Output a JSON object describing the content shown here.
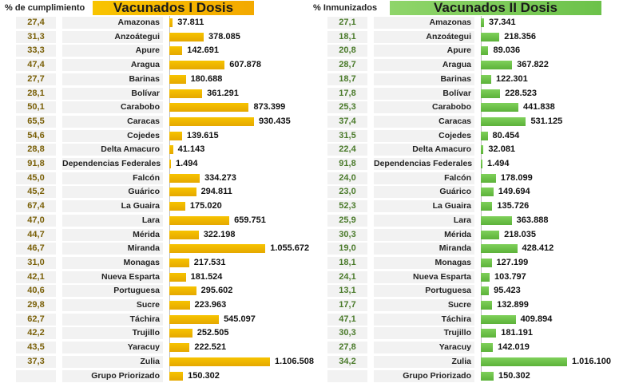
{
  "chart_data": [
    {
      "type": "bar",
      "orientation": "horizontal",
      "title": "Vacunados I Dosis",
      "pct_header": "% de cumplimiento",
      "colors": {
        "bar_top": "#f7c300",
        "bar_bottom": "#e5a800",
        "title_bg_left": "#f8c400",
        "title_bg_right": "#f3a900",
        "pct_text": "#7a6008"
      },
      "categories": [
        "Amazonas",
        "Anzoátegui",
        "Apure",
        "Aragua",
        "Barinas",
        "Bolívar",
        "Carabobo",
        "Caracas",
        "Cojedes",
        "Delta Amacuro",
        "Dependencias Federales",
        "Falcón",
        "Guárico",
        "La Guaira",
        "Lara",
        "Mérida",
        "Miranda",
        "Monagas",
        "Nueva Esparta",
        "Portuguesa",
        "Sucre",
        "Táchira",
        "Trujillo",
        "Yaracuy",
        "Zulia",
        "Grupo Priorizado"
      ],
      "values": [
        37811,
        378085,
        142691,
        607878,
        180688,
        361291,
        873399,
        930435,
        139615,
        41143,
        1494,
        334273,
        294811,
        175020,
        659751,
        322198,
        1055672,
        217531,
        181524,
        295602,
        223963,
        545097,
        252505,
        222521,
        1106508,
        150302
      ],
      "value_labels": [
        "37.811",
        "378.085",
        "142.691",
        "607.878",
        "180.688",
        "361.291",
        "873.399",
        "930.435",
        "139.615",
        "41.143",
        "1.494",
        "334.273",
        "294.811",
        "175.020",
        "659.751",
        "322.198",
        "1.055.672",
        "217.531",
        "181.524",
        "295.602",
        "223.963",
        "545.097",
        "252.505",
        "222.521",
        "1.106.508",
        "150.302"
      ],
      "percentages": [
        "27,4",
        "31,3",
        "33,3",
        "47,4",
        "27,7",
        "28,1",
        "50,1",
        "65,5",
        "54,6",
        "28,8",
        "91,8",
        "45,0",
        "45,2",
        "67,4",
        "47,0",
        "44,7",
        "46,7",
        "31,0",
        "42,1",
        "40,6",
        "29,8",
        "62,7",
        "42,2",
        "43,5",
        "37,3",
        ""
      ],
      "xlim": [
        0,
        1106508
      ]
    },
    {
      "type": "bar",
      "orientation": "horizontal",
      "title": "Vacunados II Dosis",
      "pct_header": "% Inmunizados",
      "colors": {
        "bar_top": "#7fd05a",
        "bar_bottom": "#5cb23a",
        "title_bg_left": "#8fd56a",
        "title_bg_right": "#6cc24a",
        "pct_text": "#4a7a2a"
      },
      "categories": [
        "Amazonas",
        "Anzoátegui",
        "Apure",
        "Aragua",
        "Barinas",
        "Bolívar",
        "Carabobo",
        "Caracas",
        "Cojedes",
        "Delta Amacuro",
        "Dependencias Federales",
        "Falcón",
        "Guárico",
        "La Guaira",
        "Lara",
        "Mérida",
        "Miranda",
        "Monagas",
        "Nueva Esparta",
        "Portuguesa",
        "Sucre",
        "Táchira",
        "Trujillo",
        "Yaracuy",
        "Zulia",
        "Grupo Priorizado"
      ],
      "values": [
        37341,
        218356,
        89036,
        367822,
        122301,
        228523,
        441838,
        531125,
        80454,
        32081,
        1494,
        178099,
        149694,
        135726,
        363888,
        218035,
        428412,
        127199,
        103797,
        95423,
        132899,
        409894,
        181191,
        142019,
        1016100,
        150302
      ],
      "value_labels": [
        "37.341",
        "218.356",
        "89.036",
        "367.822",
        "122.301",
        "228.523",
        "441.838",
        "531.125",
        "80.454",
        "32.081",
        "1.494",
        "178.099",
        "149.694",
        "135.726",
        "363.888",
        "218.035",
        "428.412",
        "127.199",
        "103.797",
        "95.423",
        "132.899",
        "409.894",
        "181.191",
        "142.019",
        "1.016.100",
        "150.302"
      ],
      "percentages": [
        "27,1",
        "18,1",
        "20,8",
        "28,7",
        "18,7",
        "17,8",
        "25,3",
        "37,4",
        "31,5",
        "22,4",
        "91,8",
        "24,0",
        "23,0",
        "52,3",
        "25,9",
        "30,3",
        "19,0",
        "18,1",
        "24,1",
        "13,1",
        "17,7",
        "47,1",
        "30,3",
        "27,8",
        "34,2",
        ""
      ],
      "xlim": [
        0,
        1016100
      ]
    }
  ]
}
